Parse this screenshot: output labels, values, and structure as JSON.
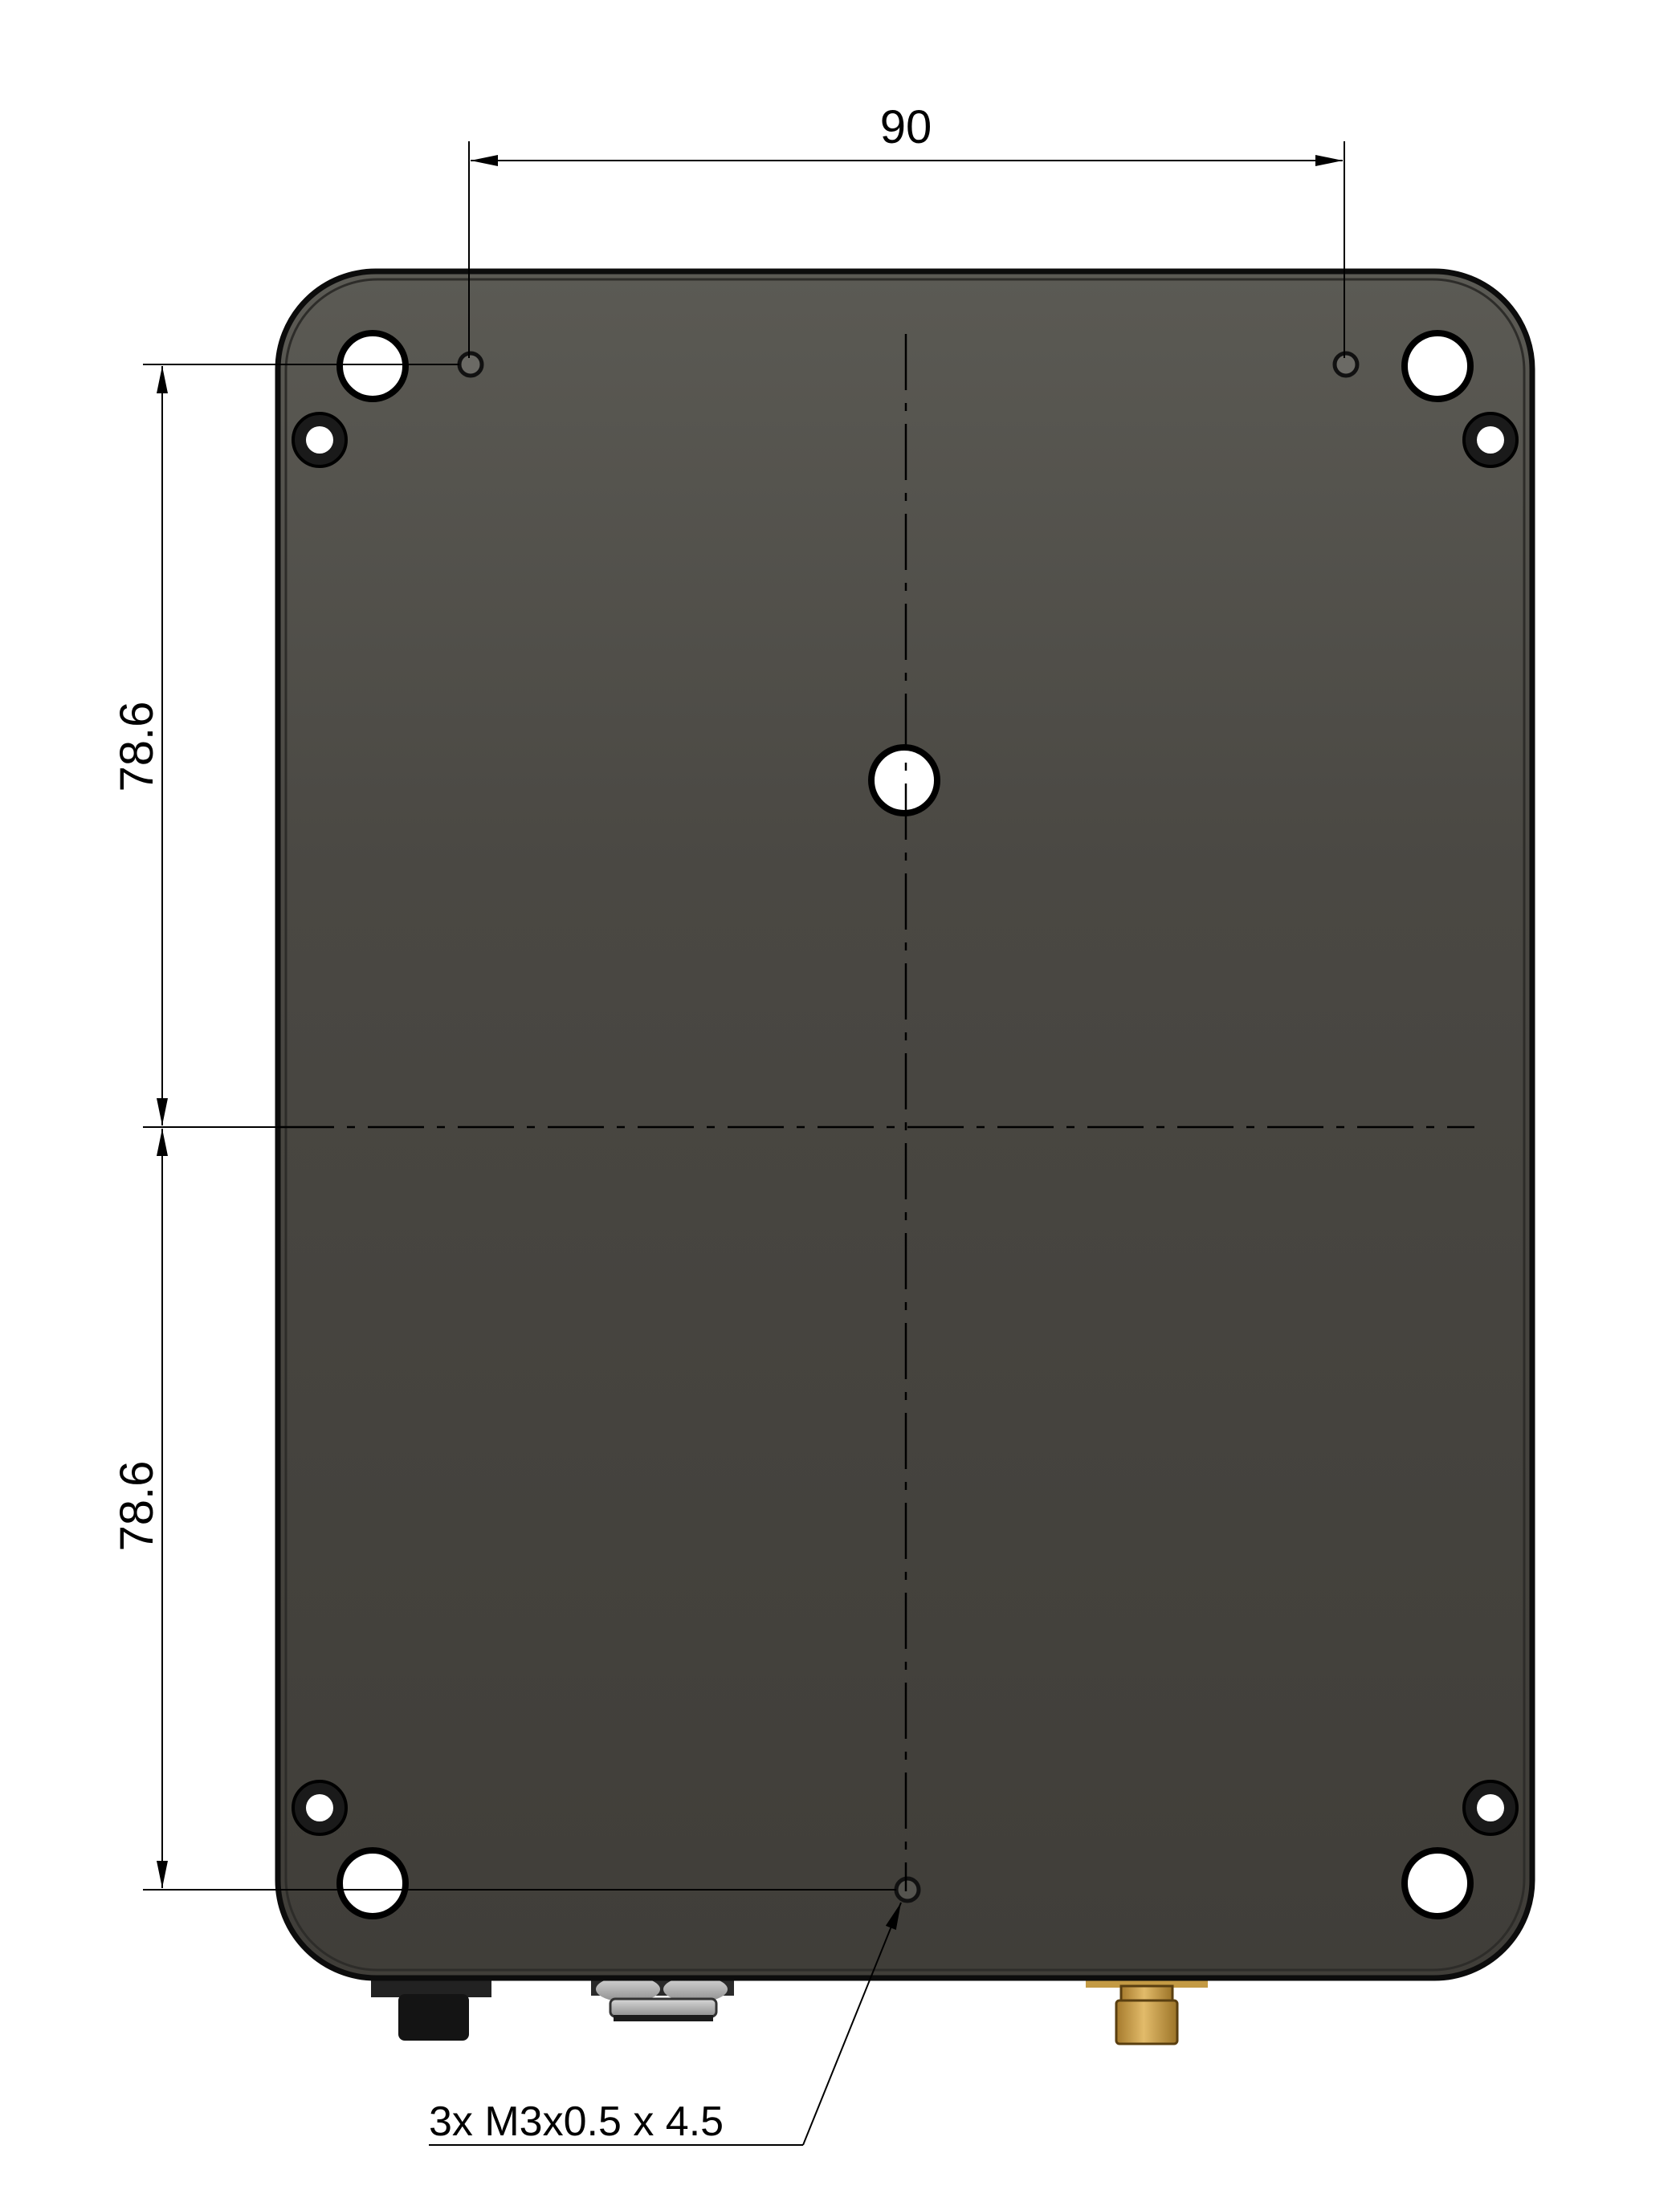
{
  "dimensions": {
    "horizontal_spacing": "90",
    "vertical_upper": "78.6",
    "vertical_lower": "78.6"
  },
  "callout": {
    "label": "3x M3x0.5 x 4.5"
  },
  "colors": {
    "plate_top": "#5a5953",
    "plate_bottom": "#403e39",
    "plate_edge": "#0c0c0c",
    "line": "#000000",
    "brass": "#c89a3e",
    "connector_dark": "#1e1e1e"
  }
}
